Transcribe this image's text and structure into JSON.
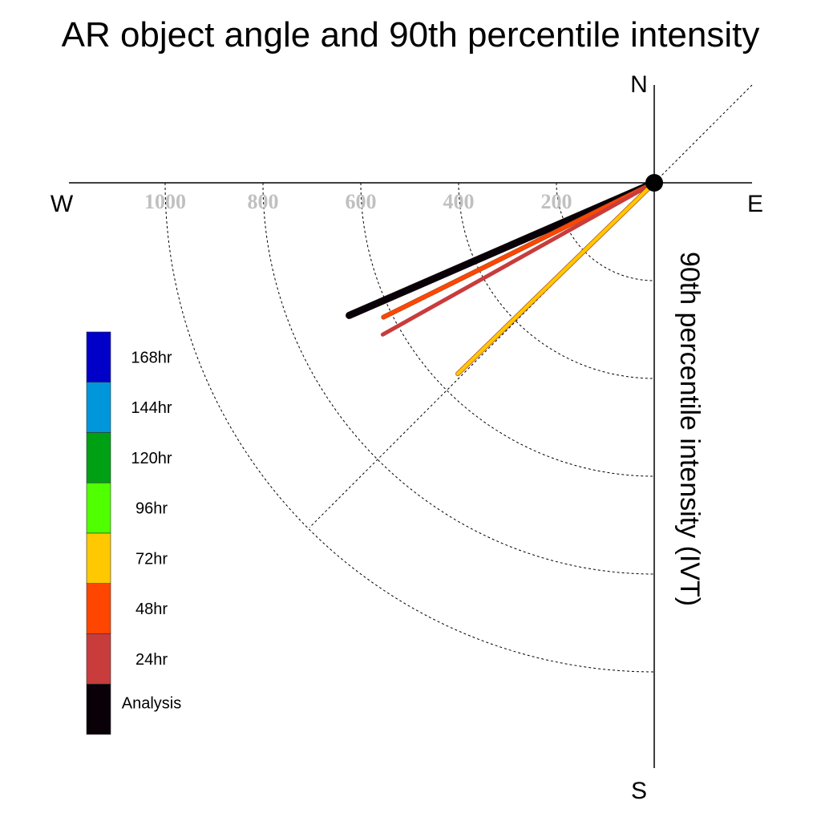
{
  "chart_data": {
    "type": "polar-vector",
    "title": "AR object angle and 90th percentile intensity",
    "ylabel": "90th percentile intensity (IVT)",
    "compass": {
      "north": "N",
      "south": "S",
      "east": "E",
      "west": "W"
    },
    "radial_range": [
      0,
      1200
    ],
    "radial_grid": [
      200,
      400,
      600,
      800,
      1000
    ],
    "tick_labels": [
      "200",
      "400",
      "600",
      "800",
      "1000"
    ],
    "grid": true,
    "legend_position": "left",
    "legend": [
      {
        "label": "168hr",
        "color": "#0000c8"
      },
      {
        "label": "144hr",
        "color": "#0096dc"
      },
      {
        "label": "120hr",
        "color": "#00a014"
      },
      {
        "label": "96hr",
        "color": "#50ff00"
      },
      {
        "label": "72hr",
        "color": "#ffc800"
      },
      {
        "label": "48hr",
        "color": "#ff4600"
      },
      {
        "label": "24hr",
        "color": "#c83c3c"
      },
      {
        "label": "Analysis",
        "color": "#0a0008"
      }
    ],
    "series": [
      {
        "name": "Analysis",
        "bearing_deg": 246.5,
        "intensity": 680,
        "color": "#0a0008",
        "width": 9
      },
      {
        "name": "48hr",
        "bearing_deg": 243.6,
        "intensity": 618,
        "color": "#ff4600",
        "width": 4.5
      },
      {
        "name": "24hr",
        "bearing_deg": 240.8,
        "intensity": 636,
        "color": "#c83c3c",
        "width": 5
      },
      {
        "name": "72hr",
        "bearing_deg": 225.8,
        "intensity": 560,
        "color": "#ffc800",
        "width": 4.5
      }
    ]
  }
}
